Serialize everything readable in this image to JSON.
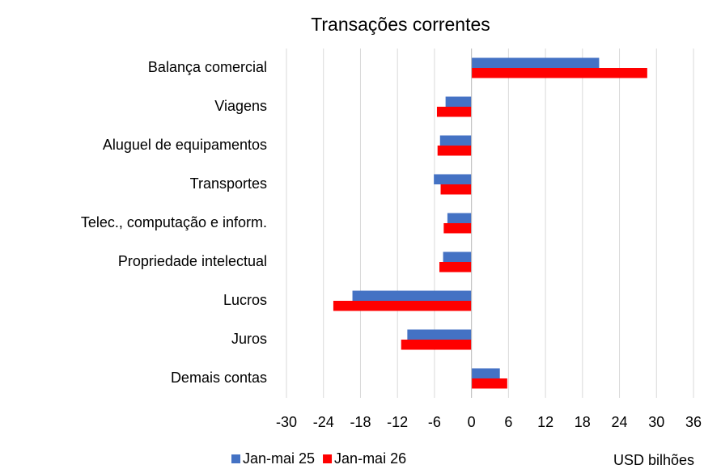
{
  "chart_data": {
    "type": "hbar",
    "title": "Transações correntes",
    "categories": [
      "Balança comercial",
      "Viagens",
      "Aluguel de equipamentos",
      "Transportes",
      "Telec., computação e inform.",
      "Propriedade intelectual",
      "Lucros",
      "Juros",
      "Demais contas"
    ],
    "series": [
      {
        "name": "Jan-mai 25",
        "color": "#4472c4",
        "values": [
          20.7,
          -4.2,
          -5.1,
          -6.1,
          -3.9,
          -4.6,
          -19.3,
          -10.4,
          4.6
        ]
      },
      {
        "name": "Jan-mai 26",
        "color": "#ff0000",
        "values": [
          28.5,
          -5.6,
          -5.5,
          -5.0,
          -4.5,
          -5.2,
          -22.4,
          -11.4,
          5.8
        ]
      }
    ],
    "xlim": [
      -30,
      36
    ],
    "xticks": [
      -30,
      -24,
      -18,
      -12,
      -6,
      0,
      6,
      12,
      18,
      24,
      30,
      36
    ],
    "unit_label": "USD bilhões",
    "grid": true,
    "legend": "bottom"
  }
}
